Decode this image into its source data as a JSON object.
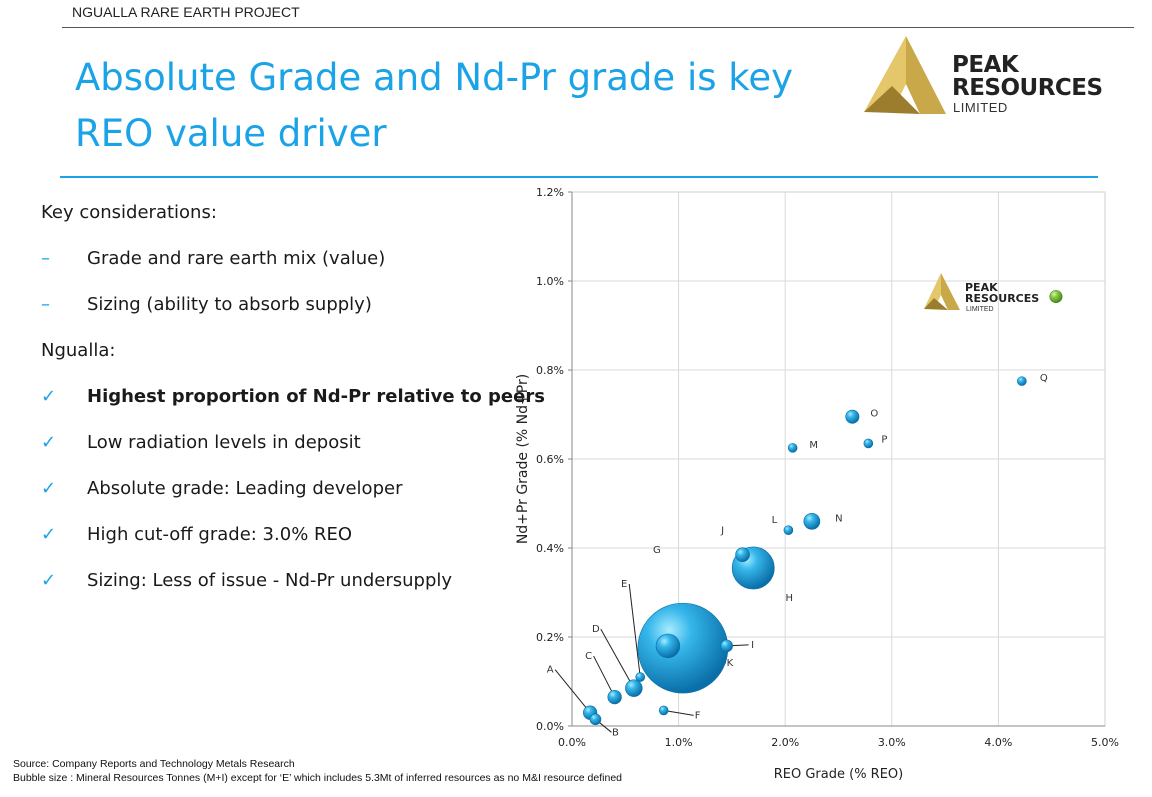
{
  "header": {
    "project_label": "NGUALLA RARE EARTH PROJECT"
  },
  "title": {
    "line1": "Absolute Grade and Nd-Pr grade is key",
    "line2": "REO value driver"
  },
  "logo": {
    "line1": "PEAK",
    "line2": "RESOURCES",
    "line3": "LIMITED"
  },
  "considerations": {
    "heading": "Key considerations:",
    "items": [
      "Grade and rare earth mix (value)",
      "Sizing (ability to absorb supply)"
    ],
    "marker": "–"
  },
  "ngualla": {
    "heading": "Ngualla:",
    "marker": "✓",
    "items": [
      "Highest proportion of Nd-Pr relative to peers",
      "Low radiation levels in deposit",
      "Absolute grade: Leading developer",
      "High cut-off grade: 3.0% REO",
      "Sizing: Less of issue - Nd-Pr undersupply"
    ]
  },
  "source": {
    "line1": "Source: Company Reports and Technology Metals Research",
    "line2": "Bubble size : Mineral Resources Tonnes (M+I) except for  ‘E’ which includes 5.3Mt of inferred resources as no M&I resource defined"
  },
  "colors": {
    "accent": "#1aa3e6",
    "bubble": "#1b9fd8",
    "bubble_highlight": "#8ee0ff",
    "ngualla_bubble": "#7cc043",
    "logo_gold": "#c9a84a"
  },
  "chart_data": {
    "type": "scatter",
    "xlabel": "REO Grade (% REO)",
    "ylabel": "Nd+Pr Grade (% Nd+Pr)",
    "xlim": [
      0,
      5
    ],
    "ylim": [
      0,
      1.2
    ],
    "x_ticks": [
      "0.0%",
      "1.0%",
      "2.0%",
      "3.0%",
      "4.0%",
      "5.0%"
    ],
    "y_ticks": [
      "0.0%",
      "0.2%",
      "0.4%",
      "0.6%",
      "0.8%",
      "1.0%",
      "1.2%"
    ],
    "grid": true,
    "bubbles": [
      {
        "label": "A",
        "x": 0.17,
        "y": 0.03,
        "size": 2.3
      },
      {
        "label": "B",
        "x": 0.22,
        "y": 0.015,
        "size": 1.5
      },
      {
        "label": "C",
        "x": 0.4,
        "y": 0.065,
        "size": 2.3
      },
      {
        "label": "D",
        "x": 0.58,
        "y": 0.085,
        "size": 3.5
      },
      {
        "label": "E",
        "x": 0.64,
        "y": 0.11,
        "size": 0.25
      },
      {
        "label": "F",
        "x": 0.86,
        "y": 0.035,
        "size": 0.25
      },
      {
        "label": "G",
        "x": 1.04,
        "y": 0.175,
        "size": 100
      },
      {
        "label": "K",
        "x": 0.9,
        "y": 0.18,
        "size": 7
      },
      {
        "label": "I",
        "x": 1.45,
        "y": 0.18,
        "size": 1.8
      },
      {
        "label": "H",
        "x": 1.7,
        "y": 0.355,
        "size": 22
      },
      {
        "label": "J",
        "x": 1.6,
        "y": 0.385,
        "size": 2.4
      },
      {
        "label": "L",
        "x": 2.03,
        "y": 0.44,
        "size": 0.3
      },
      {
        "label": "N",
        "x": 2.25,
        "y": 0.46,
        "size": 3.2
      },
      {
        "label": "M",
        "x": 2.07,
        "y": 0.625,
        "size": 0.8
      },
      {
        "label": "O",
        "x": 2.63,
        "y": 0.695,
        "size": 2.2
      },
      {
        "label": "P",
        "x": 2.78,
        "y": 0.635,
        "size": 0.4
      },
      {
        "label": "Q",
        "x": 4.22,
        "y": 0.775,
        "size": 0.5
      },
      {
        "label": "",
        "x": 4.54,
        "y": 0.965,
        "size": 1.9,
        "highlight": true
      }
    ]
  }
}
